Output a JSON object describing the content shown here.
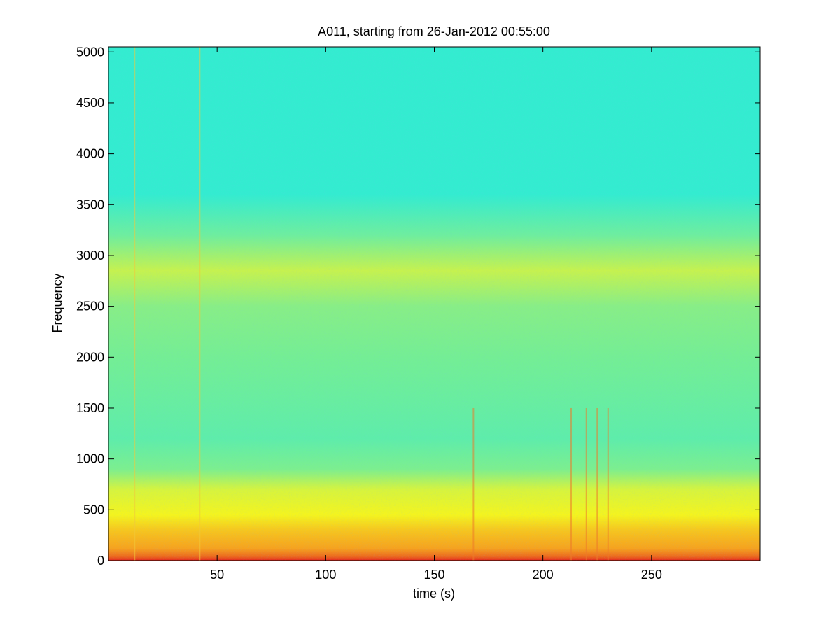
{
  "chart_data": {
    "type": "heatmap",
    "title": "A011, starting from 26-Jan-2012 00:55:00",
    "xlabel": "time (s)",
    "ylabel": "Frequency",
    "xlim": [
      0,
      300
    ],
    "ylim": [
      0,
      5050
    ],
    "xticks": [
      50,
      100,
      150,
      200,
      250
    ],
    "yticks": [
      0,
      500,
      1000,
      1500,
      2000,
      2500,
      3000,
      3500,
      4000,
      4500,
      5000
    ],
    "colormap": "jet",
    "colors": {
      "low": "#33ecd0",
      "mid": "#9cf07a",
      "high": "#f4f41e",
      "peak": "#e3241c"
    },
    "intensity_bands": [
      {
        "freq_range": [
          3500,
          5050
        ],
        "level": "low"
      },
      {
        "freq_range": [
          2600,
          3100
        ],
        "level": "mid-high"
      },
      {
        "freq_range": [
          0,
          700
        ],
        "level": "high"
      },
      {
        "freq_range": [
          0,
          150
        ],
        "level": "peak"
      }
    ],
    "broadband_events_s": [
      12,
      42,
      168,
      213,
      220,
      225,
      230
    ]
  }
}
